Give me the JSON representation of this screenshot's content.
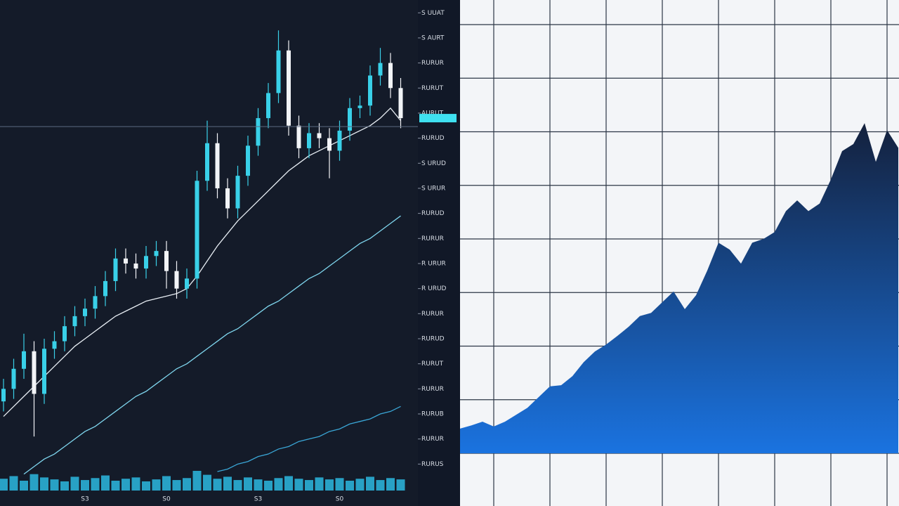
{
  "chart_data": [
    {
      "type": "candlestick",
      "categories": [
        null,
        null,
        null,
        null,
        null,
        null,
        null,
        null,
        "S3",
        null,
        null,
        null,
        null,
        null,
        null,
        null,
        "S0",
        null,
        null,
        null,
        null,
        null,
        null,
        null,
        null,
        "S3",
        null,
        null,
        null,
        null,
        null,
        null,
        null,
        "S0",
        null,
        null,
        null,
        null,
        null,
        null
      ],
      "open": [
        3.5,
        4.0,
        4.8,
        5.5,
        3.8,
        5.6,
        5.9,
        6.5,
        6.9,
        7.2,
        7.7,
        8.3,
        9.2,
        9.0,
        8.8,
        9.3,
        9.5,
        8.7,
        8.0,
        8.4,
        12.3,
        13.8,
        12.0,
        11.2,
        12.5,
        13.7,
        14.8,
        15.8,
        17.5,
        14.5,
        13.6,
        14.2,
        14.0,
        13.5,
        14.3,
        15.2,
        15.3,
        16.5,
        17.0,
        16.0
      ],
      "high": [
        4.4,
        5.2,
        6.2,
        5.9,
        6.0,
        6.3,
        6.9,
        7.3,
        7.6,
        8.1,
        8.7,
        9.6,
        9.6,
        9.4,
        9.7,
        9.9,
        9.9,
        9.1,
        8.8,
        12.7,
        14.7,
        14.2,
        12.4,
        12.9,
        14.1,
        15.2,
        16.2,
        18.3,
        17.9,
        14.9,
        14.6,
        14.6,
        14.4,
        14.7,
        15.6,
        15.7,
        16.9,
        17.6,
        17.4,
        16.4
      ],
      "low": [
        3.1,
        3.6,
        4.4,
        2.1,
        3.4,
        5.2,
        5.5,
        6.1,
        6.5,
        6.8,
        7.3,
        7.9,
        8.6,
        8.4,
        8.4,
        8.9,
        8.0,
        7.6,
        7.6,
        8.0,
        11.9,
        11.6,
        10.8,
        10.8,
        12.1,
        13.3,
        14.4,
        15.4,
        14.1,
        13.2,
        13.2,
        13.6,
        12.4,
        13.1,
        13.9,
        14.8,
        14.9,
        16.1,
        15.6,
        14.4
      ],
      "close": [
        4.0,
        4.8,
        5.5,
        3.8,
        5.6,
        5.9,
        6.5,
        6.9,
        7.2,
        7.7,
        8.3,
        9.2,
        9.0,
        8.8,
        9.3,
        9.5,
        8.7,
        8.0,
        8.4,
        12.3,
        13.8,
        12.0,
        11.2,
        12.5,
        13.7,
        14.8,
        15.8,
        17.5,
        14.5,
        13.6,
        14.2,
        14.0,
        13.5,
        14.3,
        15.2,
        15.3,
        16.5,
        17.0,
        16.0,
        14.8
      ],
      "up_color": "#39d0e8",
      "down_color": "#f2f4f7",
      "lines": [
        {
          "color": "#e8eef4",
          "values": [
            2.9,
            3.3,
            3.7,
            4.1,
            4.5,
            4.9,
            5.3,
            5.7,
            6.0,
            6.3,
            6.6,
            6.9,
            7.1,
            7.3,
            7.5,
            7.6,
            7.7,
            7.8,
            8.0,
            8.5,
            9.1,
            9.7,
            10.2,
            10.7,
            11.1,
            11.5,
            11.9,
            12.3,
            12.7,
            13.0,
            13.3,
            13.5,
            13.7,
            13.9,
            14.1,
            14.3,
            14.5,
            14.8,
            15.2,
            14.7
          ]
        },
        {
          "color": "#7fd6ee",
          "values": [
            null,
            null,
            0.6,
            0.9,
            1.2,
            1.4,
            1.7,
            2.0,
            2.3,
            2.5,
            2.8,
            3.1,
            3.4,
            3.7,
            3.9,
            4.2,
            4.5,
            4.8,
            5.0,
            5.3,
            5.6,
            5.9,
            6.2,
            6.4,
            6.7,
            7.0,
            7.3,
            7.5,
            7.8,
            8.1,
            8.4,
            8.6,
            8.9,
            9.2,
            9.5,
            9.8,
            10.0,
            10.3,
            10.6,
            10.9
          ]
        },
        {
          "color": "#3aa6d6",
          "values": [
            null,
            null,
            null,
            null,
            null,
            null,
            null,
            null,
            null,
            null,
            null,
            null,
            null,
            null,
            null,
            null,
            null,
            null,
            null,
            null,
            null,
            0.7,
            0.8,
            1.0,
            1.1,
            1.3,
            1.4,
            1.6,
            1.7,
            1.9,
            2.0,
            2.1,
            2.3,
            2.4,
            2.6,
            2.7,
            2.8,
            3.0,
            3.1,
            3.3
          ]
        }
      ],
      "volume": [
        18,
        22,
        15,
        25,
        20,
        17,
        14,
        21,
        16,
        19,
        23,
        15,
        18,
        20,
        14,
        17,
        22,
        16,
        19,
        30,
        24,
        18,
        21,
        16,
        20,
        17,
        15,
        19,
        22,
        18,
        16,
        20,
        17,
        19,
        15,
        18,
        21,
        16,
        19,
        17
      ],
      "volume_color": "#2bb8e0",
      "ylim": [
        0,
        20
      ],
      "yticks": [
        {
          "value": 19,
          "label": "S UUAT"
        },
        {
          "value": 18,
          "label": "S AURT"
        },
        {
          "value": 17,
          "label": "RURUR"
        },
        {
          "value": 16,
          "label": "RURUT"
        },
        {
          "value": 15,
          "label": "AURUT"
        },
        {
          "value": 14,
          "label": "RURUD"
        },
        {
          "value": 13,
          "label": "S URUD"
        },
        {
          "value": 12,
          "label": "S URUR"
        },
        {
          "value": 11,
          "label": "RURUD"
        },
        {
          "value": 10,
          "label": "RURUR"
        },
        {
          "value": 9,
          "label": "R URUR"
        },
        {
          "value": 8,
          "label": "R URUD"
        },
        {
          "value": 7,
          "label": "RURUR"
        },
        {
          "value": 6,
          "label": "RURUD"
        },
        {
          "value": 5,
          "label": "RURUT"
        },
        {
          "value": 4,
          "label": "RURUR"
        },
        {
          "value": 3,
          "label": "RURUB"
        },
        {
          "value": 2,
          "label": "RURUR"
        },
        {
          "value": 1,
          "label": "RURUS"
        }
      ]
    },
    {
      "type": "area",
      "x": [
        0,
        0.2,
        0.4,
        0.6,
        0.8,
        1.0,
        1.2,
        1.4,
        1.6,
        1.8,
        2.0,
        2.2,
        2.4,
        2.6,
        2.8,
        3.0,
        3.2,
        3.4,
        3.6,
        3.8,
        4.0,
        4.2,
        4.4,
        4.6,
        4.8,
        5.0,
        5.2,
        5.4,
        5.6,
        5.8,
        6.0,
        6.2,
        6.4,
        6.6,
        6.8,
        7.0,
        7.2,
        7.4,
        7.6,
        7.8
      ],
      "values": [
        0.46,
        0.52,
        0.59,
        0.5,
        0.59,
        0.72,
        0.85,
        1.05,
        1.25,
        1.27,
        1.44,
        1.7,
        1.9,
        2.03,
        2.19,
        2.36,
        2.56,
        2.62,
        2.82,
        3.02,
        2.69,
        2.95,
        3.41,
        3.93,
        3.8,
        3.54,
        3.93,
        4.0,
        4.13,
        4.52,
        4.72,
        4.52,
        4.66,
        5.11,
        5.64,
        5.77,
        6.16,
        5.44,
        6.03,
        5.7
      ],
      "color_top": "#14213d",
      "color_bottom": "#1a73e0",
      "xlim": [
        0,
        7.8
      ],
      "xticks": [
        0.6,
        1.6,
        2.6,
        3.6,
        4.6,
        5.6,
        6.6,
        7.6
      ],
      "ylim": [
        0,
        8
      ],
      "yticks": [
        0,
        1,
        2,
        3,
        4,
        5,
        6,
        7,
        8
      ],
      "grid": true
    }
  ]
}
